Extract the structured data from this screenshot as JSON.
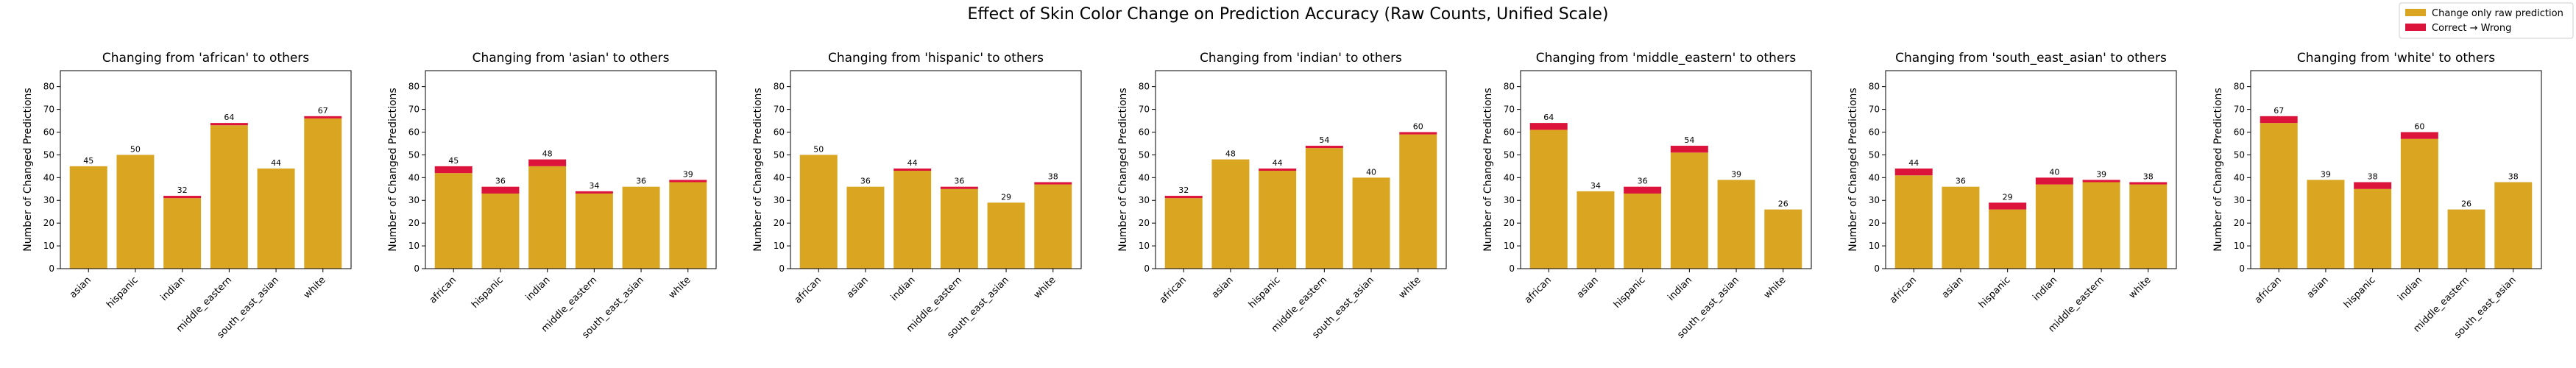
{
  "figure": {
    "title": "Effect of Skin Color Change on Prediction Accuracy (Raw Counts, Unified Scale)"
  },
  "legend": {
    "placement": "top-right",
    "items": [
      {
        "label": "Change only raw prediction",
        "color": "#DAA520"
      },
      {
        "label": "Correct → Wrong",
        "color": "#DC143C"
      }
    ]
  },
  "chart_data": [
    {
      "type": "bar",
      "title": "Changing from 'african' to others",
      "ylabel": "Number of Changed Predictions",
      "ylim": [
        0,
        87
      ],
      "yticks": [
        0,
        10,
        20,
        30,
        40,
        50,
        60,
        70,
        80
      ],
      "categories": [
        "asian",
        "hispanic",
        "indian",
        "middle_eastern",
        "south_east_asian",
        "white"
      ],
      "totals": [
        45,
        50,
        32,
        64,
        44,
        67
      ],
      "series": [
        {
          "name": "Change only raw prediction",
          "values": [
            45,
            50,
            31,
            63,
            44,
            66
          ]
        },
        {
          "name": "Correct → Wrong",
          "values": [
            0,
            0,
            1,
            1,
            0,
            1
          ]
        }
      ]
    },
    {
      "type": "bar",
      "title": "Changing from 'asian' to others",
      "ylabel": "Number of Changed Predictions",
      "ylim": [
        0,
        87
      ],
      "yticks": [
        0,
        10,
        20,
        30,
        40,
        50,
        60,
        70,
        80
      ],
      "categories": [
        "african",
        "hispanic",
        "indian",
        "middle_eastern",
        "south_east_asian",
        "white"
      ],
      "totals": [
        45,
        36,
        48,
        34,
        36,
        39
      ],
      "series": [
        {
          "name": "Change only raw prediction",
          "values": [
            42,
            33,
            45,
            33,
            36,
            38
          ]
        },
        {
          "name": "Correct → Wrong",
          "values": [
            3,
            3,
            3,
            1,
            0,
            1
          ]
        }
      ]
    },
    {
      "type": "bar",
      "title": "Changing from 'hispanic' to others",
      "ylabel": "Number of Changed Predictions",
      "ylim": [
        0,
        87
      ],
      "yticks": [
        0,
        10,
        20,
        30,
        40,
        50,
        60,
        70,
        80
      ],
      "categories": [
        "african",
        "asian",
        "indian",
        "middle_eastern",
        "south_east_asian",
        "white"
      ],
      "totals": [
        50,
        36,
        44,
        36,
        29,
        38
      ],
      "series": [
        {
          "name": "Change only raw prediction",
          "values": [
            50,
            36,
            43,
            35,
            29,
            37
          ]
        },
        {
          "name": "Correct → Wrong",
          "values": [
            0,
            0,
            1,
            1,
            0,
            1
          ]
        }
      ]
    },
    {
      "type": "bar",
      "title": "Changing from 'indian' to others",
      "ylabel": "Number of Changed Predictions",
      "ylim": [
        0,
        87
      ],
      "yticks": [
        0,
        10,
        20,
        30,
        40,
        50,
        60,
        70,
        80
      ],
      "categories": [
        "african",
        "asian",
        "hispanic",
        "middle_eastern",
        "south_east_asian",
        "white"
      ],
      "totals": [
        32,
        48,
        44,
        54,
        40,
        60
      ],
      "series": [
        {
          "name": "Change only raw prediction",
          "values": [
            31,
            48,
            43,
            53,
            40,
            59
          ]
        },
        {
          "name": "Correct → Wrong",
          "values": [
            1,
            0,
            1,
            1,
            0,
            1
          ]
        }
      ]
    },
    {
      "type": "bar",
      "title": "Changing from 'middle_eastern' to others",
      "ylabel": "Number of Changed Predictions",
      "ylim": [
        0,
        87
      ],
      "yticks": [
        0,
        10,
        20,
        30,
        40,
        50,
        60,
        70,
        80
      ],
      "categories": [
        "african",
        "asian",
        "hispanic",
        "indian",
        "south_east_asian",
        "white"
      ],
      "totals": [
        64,
        34,
        36,
        54,
        39,
        26
      ],
      "series": [
        {
          "name": "Change only raw prediction",
          "values": [
            61,
            34,
            33,
            51,
            39,
            26
          ]
        },
        {
          "name": "Correct → Wrong",
          "values": [
            3,
            0,
            3,
            3,
            0,
            0
          ]
        }
      ]
    },
    {
      "type": "bar",
      "title": "Changing from 'south_east_asian' to others",
      "ylabel": "Number of Changed Predictions",
      "ylim": [
        0,
        87
      ],
      "yticks": [
        0,
        10,
        20,
        30,
        40,
        50,
        60,
        70,
        80
      ],
      "categories": [
        "african",
        "asian",
        "hispanic",
        "indian",
        "middle_eastern",
        "white"
      ],
      "totals": [
        44,
        36,
        29,
        40,
        39,
        38
      ],
      "series": [
        {
          "name": "Change only raw prediction",
          "values": [
            41,
            36,
            26,
            37,
            38,
            37
          ]
        },
        {
          "name": "Correct → Wrong",
          "values": [
            3,
            0,
            3,
            3,
            1,
            1
          ]
        }
      ]
    },
    {
      "type": "bar",
      "title": "Changing from 'white' to others",
      "ylabel": "Number of Changed Predictions",
      "ylim": [
        0,
        87
      ],
      "yticks": [
        0,
        10,
        20,
        30,
        40,
        50,
        60,
        70,
        80
      ],
      "categories": [
        "african",
        "asian",
        "hispanic",
        "indian",
        "middle_eastern",
        "south_east_asian"
      ],
      "totals": [
        67,
        39,
        38,
        60,
        26,
        38
      ],
      "series": [
        {
          "name": "Change only raw prediction",
          "values": [
            64,
            39,
            35,
            57,
            26,
            38
          ]
        },
        {
          "name": "Correct → Wrong",
          "values": [
            3,
            0,
            3,
            3,
            0,
            0
          ]
        }
      ]
    }
  ]
}
